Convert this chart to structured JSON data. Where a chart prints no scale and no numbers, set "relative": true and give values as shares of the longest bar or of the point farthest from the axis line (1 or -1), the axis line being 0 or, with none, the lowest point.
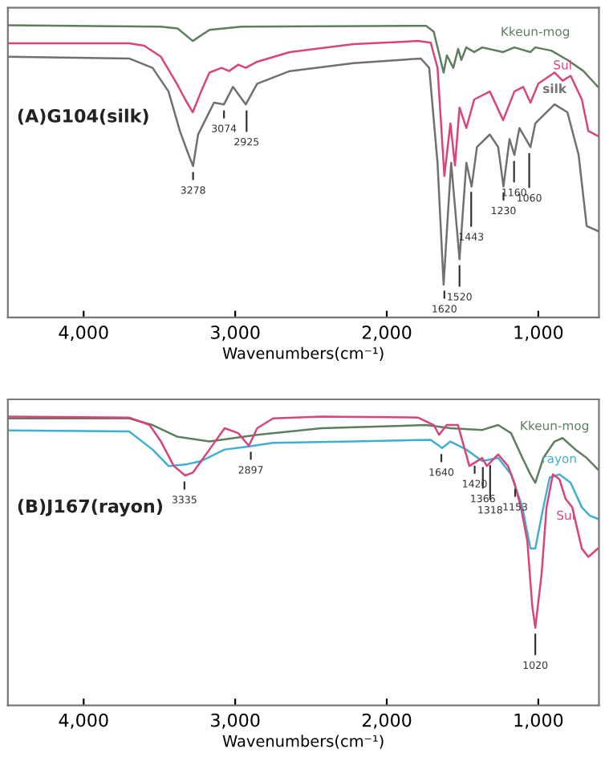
{
  "chart_data": [
    {
      "type": "line",
      "title": "(A)G104(silk)",
      "xlabel": "Wavenumbers(cm⁻¹)",
      "relative": true,
      "tick_labels": "x",
      "grid": false,
      "legend": false,
      "marker": "none",
      "line_style": "solid",
      "xlim": [
        4500,
        600
      ],
      "xticks": [
        {
          "value": 4000,
          "label": "4,000"
        },
        {
          "value": 3000,
          "label": "3,000"
        },
        {
          "value": 2000,
          "label": "2,000"
        },
        {
          "value": 1000,
          "label": "1,000"
        }
      ],
      "series": [
        {
          "name": "Kkeun-mog",
          "color": "#5e7f5e",
          "x": [
            4500,
            3490,
            3380,
            3280,
            3170,
            2960,
            2430,
            1740,
            1690,
            1625,
            1603,
            1561,
            1529,
            1508,
            1476,
            1423,
            1370,
            1232,
            1158,
            1052,
            1020,
            914,
            808,
            702,
            607
          ],
          "values": [
            1.0,
            0.995,
            0.989,
            0.946,
            0.984,
            0.995,
            0.996,
            0.998,
            0.978,
            0.838,
            0.897,
            0.854,
            0.919,
            0.881,
            0.924,
            0.908,
            0.924,
            0.908,
            0.924,
            0.908,
            0.924,
            0.913,
            0.881,
            0.843,
            0.789
          ]
        },
        {
          "name": "Sul",
          "color": "#d9457a",
          "x": [
            4500,
            3700,
            3600,
            3490,
            3385,
            3330,
            3280,
            3225,
            3170,
            3090,
            3040,
            2980,
            2930,
            2855,
            2640,
            2220,
            1795,
            1710,
            1665,
            1620,
            1580,
            1550,
            1520,
            1475,
            1423,
            1320,
            1232,
            1158,
            1100,
            1052,
            1000,
            893,
            840,
            787,
            713,
            670,
            607
          ],
          "values": [
            0.938,
            0.938,
            0.93,
            0.892,
            0.8,
            0.746,
            0.702,
            0.773,
            0.838,
            0.854,
            0.843,
            0.865,
            0.854,
            0.875,
            0.908,
            0.935,
            0.946,
            0.94,
            0.854,
            0.484,
            0.664,
            0.52,
            0.718,
            0.648,
            0.746,
            0.773,
            0.675,
            0.773,
            0.789,
            0.735,
            0.8,
            0.838,
            0.81,
            0.827,
            0.746,
            0.638,
            0.621
          ]
        },
        {
          "name": "silk",
          "color": "#707070",
          "x": [
            4500,
            3700,
            3545,
            3440,
            3365,
            3310,
            3278,
            3245,
            3140,
            3074,
            3015,
            2930,
            2855,
            2640,
            2220,
            1775,
            1720,
            1665,
            1625,
            1595,
            1575,
            1520,
            1475,
            1440,
            1405,
            1320,
            1265,
            1230,
            1190,
            1158,
            1125,
            1052,
            1020,
            893,
            808,
            734,
            681,
            607
          ],
          "values": [
            0.892,
            0.886,
            0.854,
            0.773,
            0.638,
            0.56,
            0.518,
            0.626,
            0.735,
            0.729,
            0.789,
            0.729,
            0.8,
            0.843,
            0.87,
            0.886,
            0.854,
            0.529,
            0.112,
            0.367,
            0.529,
            0.199,
            0.529,
            0.448,
            0.583,
            0.626,
            0.583,
            0.448,
            0.61,
            0.556,
            0.648,
            0.583,
            0.664,
            0.729,
            0.702,
            0.556,
            0.313,
            0.296
          ]
        }
      ],
      "annotations": [
        {
          "text": "3278",
          "x": 3278,
          "y": 0.518
        },
        {
          "text": "3074",
          "x": 3074,
          "y": 0.729
        },
        {
          "text": "2925",
          "x": 2925,
          "y": 0.729
        },
        {
          "text": "1620",
          "x": 1620,
          "y": 0.112
        },
        {
          "text": "1520",
          "x": 1520,
          "y": 0.199
        },
        {
          "text": "1443",
          "x": 1443,
          "y": 0.45
        },
        {
          "text": "1230",
          "x": 1230,
          "y": 0.448
        },
        {
          "text": "1160",
          "x": 1160,
          "y": 0.556
        },
        {
          "text": "1060",
          "x": 1060,
          "y": 0.583
        }
      ]
    },
    {
      "type": "line",
      "title": "(B)J167(rayon)",
      "xlabel": "Wavenumbers(cm⁻¹)",
      "relative": true,
      "tick_labels": "x",
      "grid": false,
      "legend": false,
      "marker": "none",
      "line_style": "solid",
      "xlim": [
        4500,
        600
      ],
      "xticks": [
        {
          "value": 4000,
          "label": "4,000"
        },
        {
          "value": 3000,
          "label": "3,000"
        },
        {
          "value": 2000,
          "label": "2,000"
        },
        {
          "value": 1000,
          "label": "1,000"
        }
      ],
      "series": [
        {
          "name": "Kkeun-mog",
          "color": "#5e7f5e",
          "x": [
            4500,
            3700,
            3545,
            3385,
            3170,
            2855,
            2430,
            1740,
            1580,
            1370,
            1265,
            1180,
            1105,
            1052,
            1020,
            967,
            893,
            840,
            755,
            681,
            607
          ],
          "values": [
            0.994,
            0.994,
            0.971,
            0.931,
            0.914,
            0.937,
            0.96,
            0.971,
            0.96,
            0.954,
            0.971,
            0.943,
            0.857,
            0.8,
            0.771,
            0.857,
            0.914,
            0.926,
            0.886,
            0.857,
            0.817
          ]
        },
        {
          "name": "rayon",
          "color": "#3fb0d0",
          "x": [
            4500,
            3700,
            3545,
            3440,
            3330,
            3225,
            3070,
            2910,
            2750,
            2220,
            1710,
            1635,
            1580,
            1475,
            1370,
            1265,
            1180,
            1105,
            1052,
            1020,
            967,
            925,
            861,
            787,
            713,
            660,
            607
          ],
          "values": [
            0.952,
            0.949,
            0.886,
            0.829,
            0.834,
            0.846,
            0.886,
            0.897,
            0.909,
            0.914,
            0.92,
            0.891,
            0.914,
            0.886,
            0.846,
            0.857,
            0.8,
            0.686,
            0.543,
            0.543,
            0.686,
            0.789,
            0.8,
            0.771,
            0.686,
            0.657,
            0.646
          ]
        },
        {
          "name": "Sul",
          "color": "#d9457a",
          "x": [
            4500,
            3700,
            3565,
            3490,
            3405,
            3330,
            3280,
            3170,
            3070,
            2980,
            2910,
            2855,
            2750,
            2430,
            1795,
            1690,
            1655,
            1605,
            1530,
            1500,
            1455,
            1370,
            1340,
            1265,
            1200,
            1158,
            1115,
            1073,
            1040,
            1020,
            978,
            946,
            904,
            861,
            819,
            776,
            713,
            670,
            607
          ],
          "values": [
            1.0,
            0.997,
            0.971,
            0.914,
            0.829,
            0.796,
            0.806,
            0.886,
            0.96,
            0.943,
            0.899,
            0.96,
            0.994,
            1.0,
            0.997,
            0.971,
            0.937,
            0.971,
            0.971,
            0.914,
            0.829,
            0.857,
            0.829,
            0.869,
            0.829,
            0.771,
            0.686,
            0.571,
            0.343,
            0.269,
            0.457,
            0.686,
            0.8,
            0.783,
            0.714,
            0.686,
            0.543,
            0.514,
            0.543
          ]
        }
      ],
      "annotations": [
        {
          "text": "3335",
          "x": 3335,
          "y": 0.796
        },
        {
          "text": "2897",
          "x": 2897,
          "y": 0.899
        },
        {
          "text": "1640",
          "x": 1640,
          "y": 0.891
        },
        {
          "text": "1420",
          "x": 1420,
          "y": 0.851
        },
        {
          "text": "1366",
          "x": 1366,
          "y": 0.846
        },
        {
          "text": "1318",
          "x": 1318,
          "y": 0.853
        },
        {
          "text": "1153",
          "x": 1153,
          "y": 0.771
        },
        {
          "text": "1020",
          "x": 1020,
          "y": 0.269
        }
      ]
    }
  ]
}
